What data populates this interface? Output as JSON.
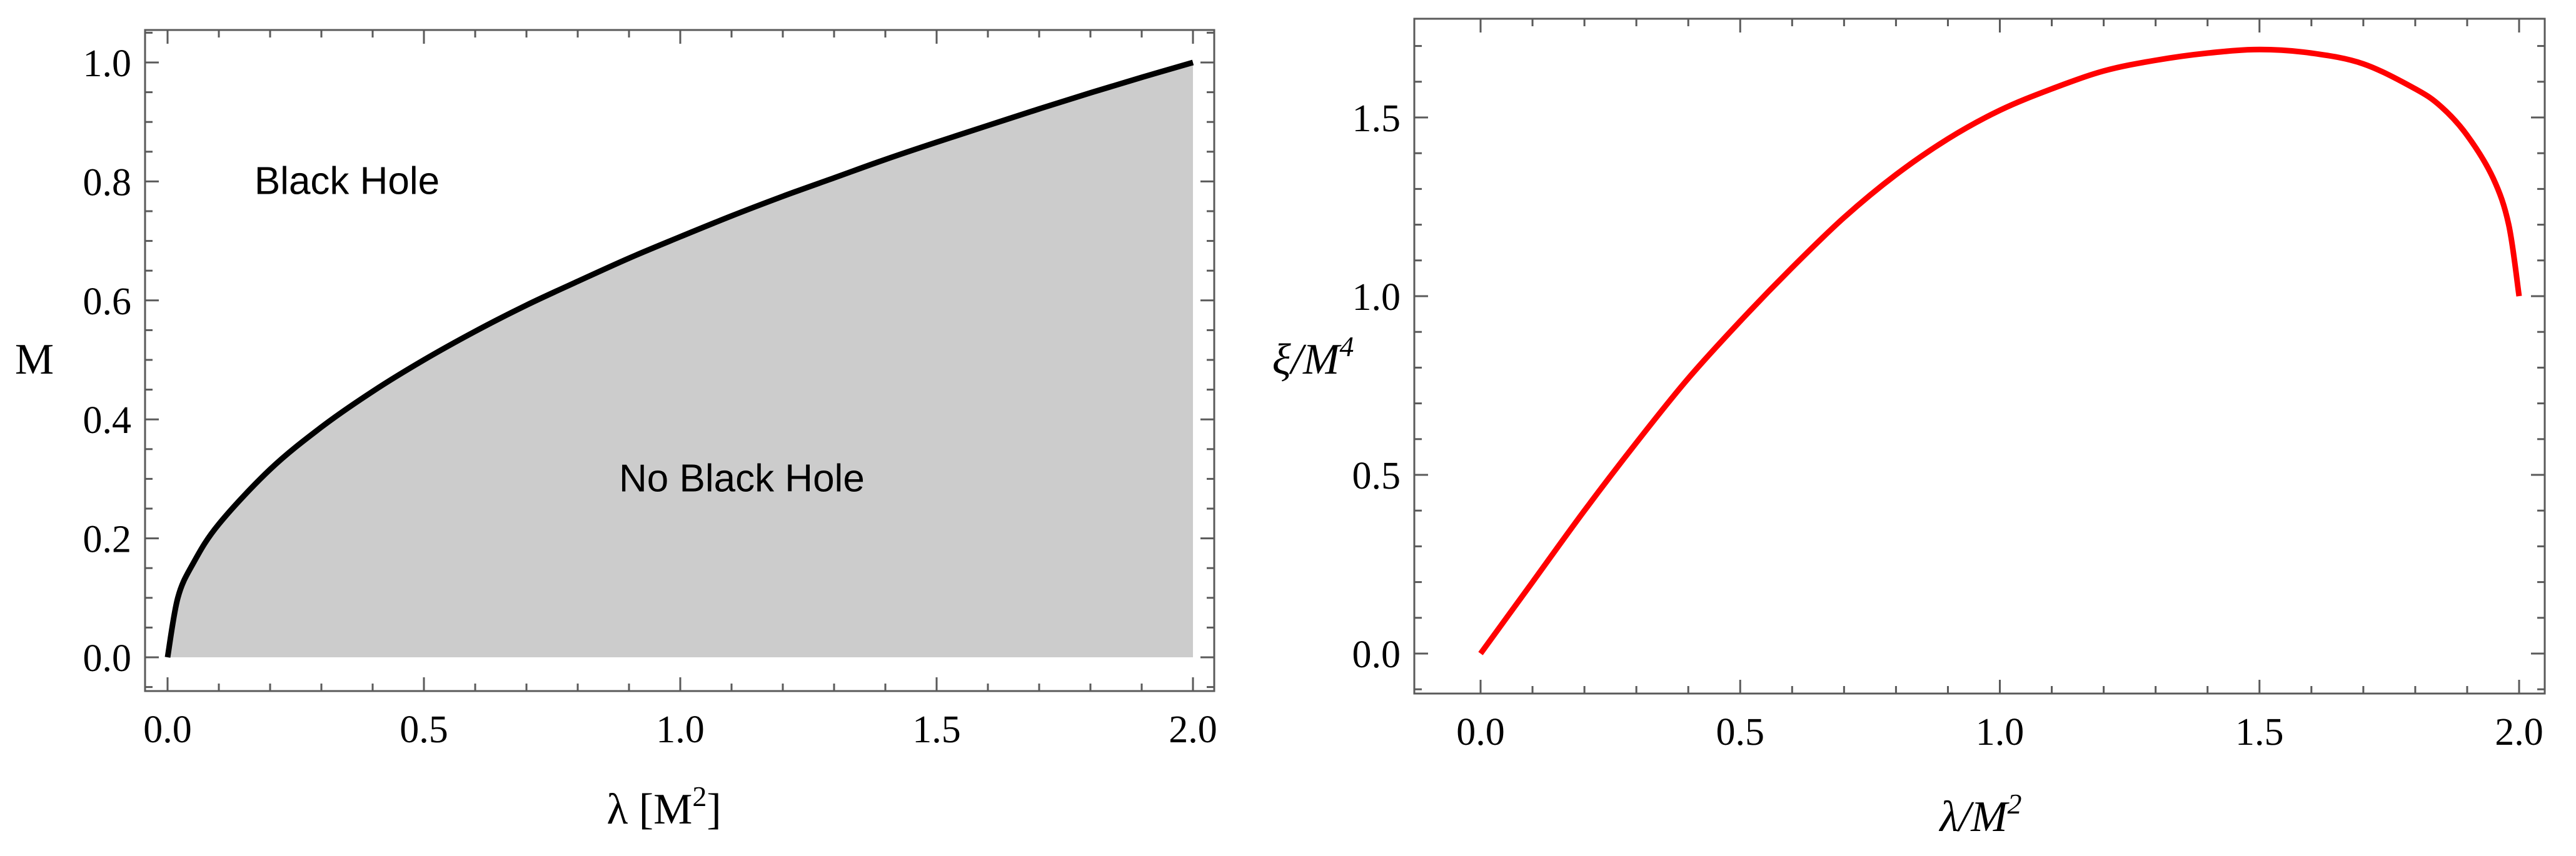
{
  "chart_data": [
    {
      "type": "area",
      "xlim": [
        0.0,
        2.0
      ],
      "ylim": [
        0.0,
        1.0
      ],
      "x_ticks": [
        "0.0",
        "0.5",
        "1.0",
        "1.5",
        "2.0"
      ],
      "y_ticks": [
        "0.0",
        "0.2",
        "0.4",
        "0.6",
        "0.8",
        "1.0"
      ],
      "xlabel": {
        "main": "λ [M",
        "sup": "2",
        "tail": "]"
      },
      "ylabel": "M",
      "series": [
        {
          "x": [
            0.0,
            0.02,
            0.05,
            0.1,
            0.2,
            0.3,
            0.4,
            0.5,
            0.6,
            0.7,
            0.8,
            0.9,
            1.0,
            1.1,
            1.2,
            1.3,
            1.4,
            1.5,
            1.6,
            1.7,
            1.8,
            1.9,
            2.0
          ],
          "y": [
            0.0,
            0.1,
            0.158,
            0.224,
            0.316,
            0.387,
            0.447,
            0.5,
            0.548,
            0.592,
            0.632,
            0.671,
            0.707,
            0.742,
            0.775,
            0.806,
            0.837,
            0.866,
            0.894,
            0.922,
            0.949,
            0.975,
            1.0
          ],
          "color": "#000000",
          "fill": "#cccccc"
        }
      ],
      "annotations": [
        {
          "text": "Black Hole",
          "x": 0.35,
          "y": 0.8
        },
        {
          "text": "No Black Hole",
          "x": 1.12,
          "y": 0.3
        }
      ],
      "grid": false
    },
    {
      "type": "line",
      "xlim": [
        0.0,
        2.0
      ],
      "ylim": [
        -0.08,
        1.78
      ],
      "x_ticks": [
        "0.0",
        "0.5",
        "1.0",
        "1.5",
        "2.0"
      ],
      "y_ticks": [
        "0.0",
        "0.5",
        "1.0",
        "1.5"
      ],
      "xlabel": {
        "main": "λ/M",
        "sup": "2"
      },
      "ylabel": {
        "main": "ξ/M",
        "sup": "4"
      },
      "series": [
        {
          "x": [
            0.0,
            0.1,
            0.2,
            0.3,
            0.4,
            0.5,
            0.6,
            0.7,
            0.8,
            0.9,
            1.0,
            1.1,
            1.2,
            1.3,
            1.4,
            1.5,
            1.6,
            1.7,
            1.8,
            1.85,
            1.9,
            1.95,
            1.98,
            2.0
          ],
          "y": [
            0.0,
            0.2,
            0.4,
            0.59,
            0.77,
            0.93,
            1.08,
            1.22,
            1.34,
            1.44,
            1.52,
            1.58,
            1.63,
            1.66,
            1.68,
            1.69,
            1.68,
            1.65,
            1.58,
            1.53,
            1.45,
            1.33,
            1.2,
            1.0
          ],
          "color": "#ff0000"
        }
      ],
      "grid": false
    }
  ]
}
